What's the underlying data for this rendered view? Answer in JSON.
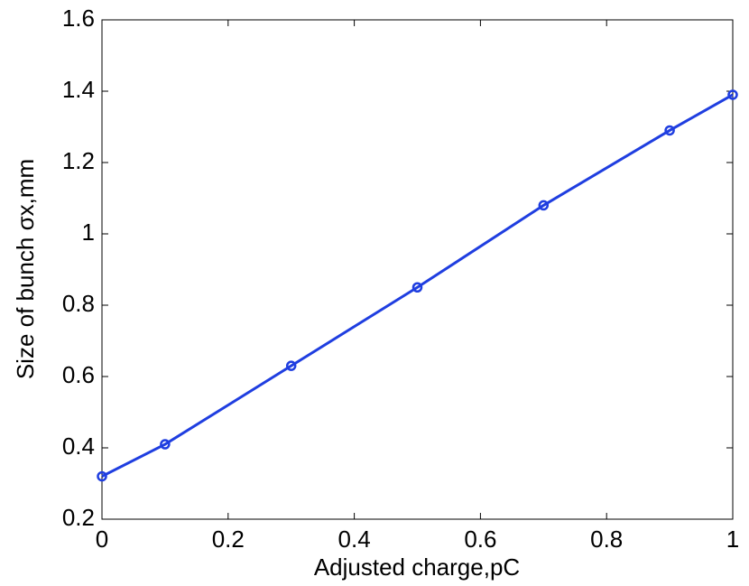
{
  "chart_data": {
    "type": "line",
    "x_label": "Adjusted charge,pC",
    "y_label": "Size of bunch σx,mm",
    "x": [
      0,
      0.1,
      0.3,
      0.5,
      0.7,
      0.9,
      1
    ],
    "series": [
      {
        "color": "#1f3ee0",
        "marker": "circle",
        "values": [
          0.32,
          0.41,
          0.63,
          0.85,
          1.08,
          1.29,
          1.39
        ]
      }
    ],
    "xlim": [
      0,
      1
    ],
    "xticks": [
      0,
      0.2,
      0.4,
      0.6,
      0.8,
      1
    ],
    "ylim": [
      0.2,
      1.6
    ],
    "yticks": [
      0.2,
      0.4,
      0.6,
      0.8,
      1,
      1.2,
      1.4,
      1.6
    ],
    "grid": false
  }
}
